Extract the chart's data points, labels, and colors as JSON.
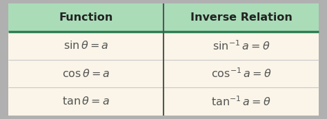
{
  "header": [
    "Function",
    "Inverse Relation"
  ],
  "rows": [
    [
      "$\\sin\\theta = a$",
      "$\\sin^{-1} a = \\theta$"
    ],
    [
      "$\\cos\\theta = a$",
      "$\\cos^{-1} a = \\theta$"
    ],
    [
      "$\\tan\\theta = a$",
      "$\\tan^{-1} a = \\theta$"
    ]
  ],
  "header_bg": "#aadcb8",
  "row_bg": "#faf5e8",
  "header_divider_color": "#2e7d52",
  "row_divider_color": "#c8c8c8",
  "outer_border_color": "#a8a8a8",
  "vert_divider_color": "#555555",
  "header_text_color": "#222222",
  "row_text_color": "#555555",
  "header_fontsize": 11.5,
  "row_fontsize": 11.5,
  "fig_bg": "#b0b0b0",
  "fig_width": 4.74,
  "fig_height": 1.73
}
